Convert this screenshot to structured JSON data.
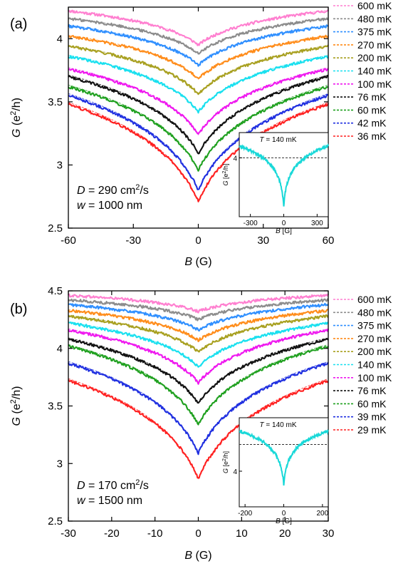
{
  "colors": {
    "600": "#ff7fd0",
    "480": "#8c8c8c",
    "375": "#2f8fff",
    "270": "#ff8c1a",
    "200": "#a8a020",
    "140": "#18e0ef",
    "100": "#ef18ef",
    "76": "#111111",
    "60": "#1fa01f",
    "low_blue": "#1f2fe0",
    "low_red": "#ff2020",
    "inset_trace": "#18d8d8"
  },
  "chart_data": [
    {
      "type": "line",
      "panel_label": "(a)",
      "xlabel_var": "B",
      "xlabel_unit": " (G)",
      "ylabel_var": "G",
      "ylabel_unit": " (e",
      "ylabel_sup": "2",
      "ylabel_tail": "/h)",
      "xlim": [
        -60,
        60
      ],
      "ylim": [
        2.5,
        4.25
      ],
      "xticks": [
        "-60",
        "-30",
        "0",
        "30",
        "60"
      ],
      "xtick_values": [
        -60,
        -30,
        0,
        30,
        60
      ],
      "yticks": [
        "2.5",
        "3",
        "3.5",
        "4"
      ],
      "ytick_values": [
        2.5,
        3.0,
        3.5,
        4.0
      ],
      "annotation_D_var": "D",
      "annotation_D_text": " = 290 cm",
      "annotation_D_sup": "2",
      "annotation_D_tail": "/s",
      "annotation_w_var": "w",
      "annotation_w_text": " = 1000 nm",
      "series": [
        {
          "name": "600 mK",
          "key": "600",
          "g0": 3.95,
          "g60": 4.22
        },
        {
          "name": "480 mK",
          "key": "480",
          "g0": 3.88,
          "g60": 4.16
        },
        {
          "name": "375 mK",
          "key": "375",
          "g0": 3.79,
          "g60": 4.1
        },
        {
          "name": "270 mK",
          "key": "270",
          "g0": 3.68,
          "g60": 4.02
        },
        {
          "name": "200 mK",
          "key": "200",
          "g0": 3.56,
          "g60": 3.94
        },
        {
          "name": "140 mK",
          "key": "140",
          "g0": 3.42,
          "g60": 3.86
        },
        {
          "name": "100 mK",
          "key": "100",
          "g0": 3.24,
          "g60": 3.76
        },
        {
          "name": "76 mK",
          "key": "76",
          "g0": 3.09,
          "g60": 3.7
        },
        {
          "name": "60 mK",
          "key": "60",
          "g0": 2.96,
          "g60": 3.62
        },
        {
          "name": "42 mK",
          "key": "low_blue",
          "g0": 2.8,
          "g60": 3.55
        },
        {
          "name": "36 mK",
          "key": "low_red",
          "g0": 2.71,
          "g60": 3.48
        }
      ],
      "inset": {
        "title_var": "T",
        "title_text": " = 140 mK",
        "xlabel_var": "B",
        "xlabel_unit": " [G]",
        "ylabel_var": "G",
        "ylabel_unit": " [e",
        "ylabel_sup": "2",
        "ylabel_tail": "/h]",
        "xlim": [
          -400,
          400
        ],
        "ylim": [
          3.3,
          4.3
        ],
        "xticks": [
          "-300",
          "0",
          "300"
        ],
        "xtick_values": [
          -300,
          0,
          300
        ],
        "yticks": [
          "4"
        ],
        "ytick_values": [
          4.0
        ],
        "trace": {
          "g0": 3.42,
          "gmax": 4.14,
          "ref": 4.0
        }
      }
    },
    {
      "type": "line",
      "panel_label": "(b)",
      "xlabel_var": "B",
      "xlabel_unit": " (G)",
      "ylabel_var": "G",
      "ylabel_unit": " (e",
      "ylabel_sup": "2",
      "ylabel_tail": "/h)",
      "xlim": [
        -30,
        30
      ],
      "ylim": [
        2.5,
        4.5
      ],
      "xticks": [
        "-30",
        "-20",
        "-10",
        "0",
        "10",
        "20",
        "30"
      ],
      "xtick_values": [
        -30,
        -20,
        -10,
        0,
        10,
        20,
        30
      ],
      "yticks": [
        "2.5",
        "3",
        "3.5",
        "4",
        "4.5"
      ],
      "ytick_values": [
        2.5,
        3.0,
        3.5,
        4.0,
        4.5
      ],
      "annotation_D_var": "D",
      "annotation_D_text": " = 170 cm",
      "annotation_D_sup": "2",
      "annotation_D_tail": "/s",
      "annotation_w_var": "w",
      "annotation_w_text": " = 1500 nm",
      "series": [
        {
          "name": "600 mK",
          "key": "600",
          "g0": 4.32,
          "g60": 4.46
        },
        {
          "name": "480 mK",
          "key": "480",
          "g0": 4.25,
          "g60": 4.42
        },
        {
          "name": "375 mK",
          "key": "375",
          "g0": 4.16,
          "g60": 4.38
        },
        {
          "name": "270 mK",
          "key": "270",
          "g0": 4.07,
          "g60": 4.33
        },
        {
          "name": "200 mK",
          "key": "200",
          "g0": 3.97,
          "g60": 4.28
        },
        {
          "name": "140 mK",
          "key": "140",
          "g0": 3.84,
          "g60": 4.22
        },
        {
          "name": "100 mK",
          "key": "100",
          "g0": 3.7,
          "g60": 4.16
        },
        {
          "name": "76 mK",
          "key": "76",
          "g0": 3.52,
          "g60": 4.08
        },
        {
          "name": "60 mK",
          "key": "60",
          "g0": 3.34,
          "g60": 4.02
        },
        {
          "name": "39 mK",
          "key": "low_blue",
          "g0": 3.09,
          "g60": 3.87
        },
        {
          "name": "29 mK",
          "key": "low_red",
          "g0": 2.87,
          "g60": 3.72
        }
      ],
      "inset": {
        "title_var": "T",
        "title_text": " = 140 mK",
        "xlabel_var": "B",
        "xlabel_unit": " [G]",
        "ylabel_var": "G",
        "ylabel_unit": " [e",
        "ylabel_sup": "2",
        "ylabel_tail": "/h]",
        "xlim": [
          -230,
          230
        ],
        "ylim": [
          3.6,
          4.6
        ],
        "xticks": [
          "-200",
          "0",
          "200"
        ],
        "xtick_values": [
          -200,
          0,
          200
        ],
        "yticks": [
          "4"
        ],
        "ytick_values": [
          4.0
        ],
        "trace": {
          "g0": 3.84,
          "gmax": 4.45,
          "ref": 4.3
        }
      }
    }
  ]
}
